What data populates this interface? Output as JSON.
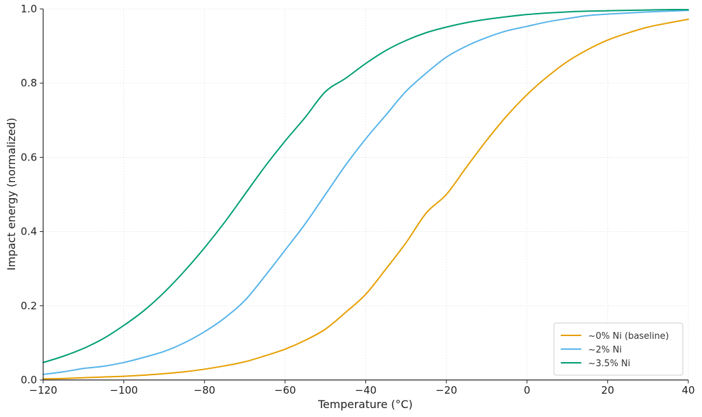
{
  "chart_data": {
    "type": "line",
    "title": "",
    "xlabel": "Temperature (°C)",
    "ylabel": "Impact energy (normalized)",
    "xlim": [
      -120,
      40
    ],
    "ylim": [
      0,
      1.0
    ],
    "x_ticks": [
      -120,
      -100,
      -80,
      -60,
      -40,
      -20,
      0,
      20,
      40
    ],
    "y_ticks": [
      0.0,
      0.2,
      0.4,
      0.6,
      0.8,
      1.0
    ],
    "x_tick_labels": [
      "−120",
      "−100",
      "−80",
      "−60",
      "−40",
      "−20",
      "0",
      "20",
      "40"
    ],
    "y_tick_labels": [
      "0.0",
      "0.2",
      "0.4",
      "0.6",
      "0.8",
      "1.0"
    ],
    "grid": true,
    "legend_position": "bottom-right",
    "x": [
      -120,
      -115,
      -110,
      -105,
      -100,
      -95,
      -90,
      -85,
      -80,
      -75,
      -70,
      -65,
      -60,
      -55,
      -50,
      -45,
      -40,
      -35,
      -30,
      -25,
      -20,
      -15,
      -10,
      -5,
      0,
      5,
      10,
      15,
      20,
      25,
      30,
      35,
      40
    ],
    "series": [
      {
        "name": "~0% Ni (baseline)",
        "color": "#E69F00",
        "values": [
          0.003,
          0.004,
          0.006,
          0.008,
          0.01,
          0.013,
          0.017,
          0.022,
          0.029,
          0.038,
          0.049,
          0.065,
          0.083,
          0.107,
          0.137,
          0.182,
          0.231,
          0.299,
          0.37,
          0.45,
          0.5,
          0.574,
          0.646,
          0.712,
          0.769,
          0.817,
          0.858,
          0.89,
          0.916,
          0.935,
          0.951,
          0.962,
          0.972
        ]
      },
      {
        "name": "~2% Ni",
        "color": "#56B4E9",
        "values": [
          0.015,
          0.022,
          0.031,
          0.037,
          0.047,
          0.061,
          0.077,
          0.1,
          0.13,
          0.167,
          0.214,
          0.28,
          0.35,
          0.421,
          0.5,
          0.579,
          0.65,
          0.714,
          0.778,
          0.827,
          0.87,
          0.9,
          0.923,
          0.941,
          0.953,
          0.965,
          0.974,
          0.982,
          0.986,
          0.989,
          0.992,
          0.994,
          0.996
        ]
      },
      {
        "name": "~3.5% Ni",
        "color": "#009E73",
        "values": [
          0.047,
          0.064,
          0.085,
          0.112,
          0.147,
          0.187,
          0.236,
          0.293,
          0.356,
          0.425,
          0.5,
          0.575,
          0.644,
          0.708,
          0.777,
          0.813,
          0.853,
          0.888,
          0.915,
          0.936,
          0.951,
          0.963,
          0.972,
          0.979,
          0.985,
          0.989,
          0.992,
          0.994,
          0.995,
          0.996,
          0.997,
          0.998,
          0.998
        ]
      }
    ]
  }
}
